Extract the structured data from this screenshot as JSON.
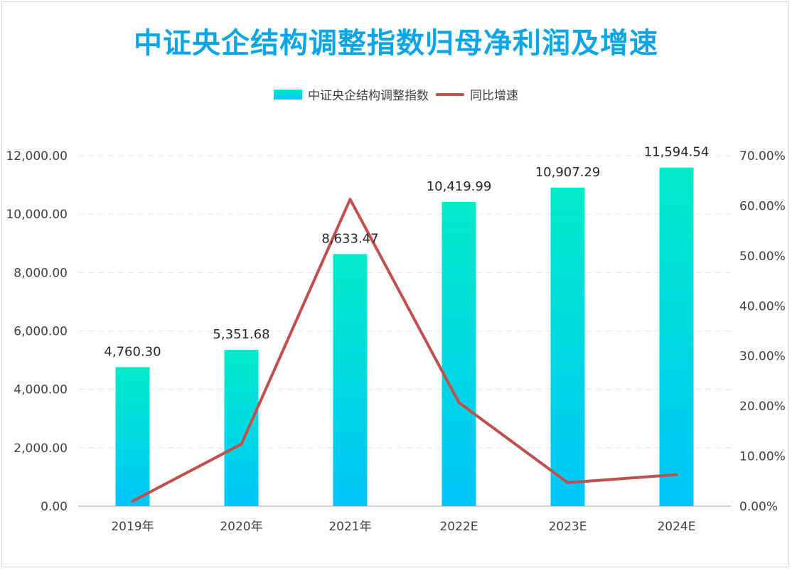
{
  "chart_data": {
    "type": "bar",
    "title": "中证央企结构调整指数归母净利润及增速",
    "categories": [
      "2019年",
      "2020年",
      "2021年",
      "2022E",
      "2023E",
      "2024E"
    ],
    "series": [
      {
        "name": "中证央企结构调整指数",
        "type": "bar",
        "axis": "left",
        "values": [
          4760.3,
          5351.68,
          8633.47,
          10419.99,
          10907.29,
          11594.54
        ],
        "labels": [
          "4,760.30",
          "5,351.68",
          "8,633.47",
          "10,419.99",
          "10,907.29",
          "11,594.54"
        ],
        "color": "#00d6e8"
      },
      {
        "name": "同比增速",
        "type": "line",
        "axis": "right",
        "values": [
          0.01,
          0.124,
          0.613,
          0.207,
          0.047,
          0.063
        ],
        "color": "#c0504d"
      }
    ],
    "y_left": {
      "ylim": [
        0,
        12000
      ],
      "ticks": [
        0,
        2000,
        4000,
        6000,
        8000,
        10000,
        12000
      ],
      "tick_labels": [
        "0.00",
        "2,000.00",
        "4,000.00",
        "6,000.00",
        "8,000.00",
        "10,000.00",
        "12,000.00"
      ]
    },
    "y_right": {
      "ylim": [
        0,
        0.7
      ],
      "ticks": [
        0,
        0.1,
        0.2,
        0.3,
        0.4,
        0.5,
        0.6,
        0.7
      ],
      "tick_labels": [
        "0.00%",
        "10.00%",
        "20.00%",
        "30.00%",
        "40.00%",
        "50.00%",
        "60.00%",
        "70.00%"
      ]
    },
    "grid": true,
    "legend_position": "top-center"
  },
  "legend": {
    "bar_label": "中证央企结构调整指数",
    "line_label": "同比增速"
  }
}
